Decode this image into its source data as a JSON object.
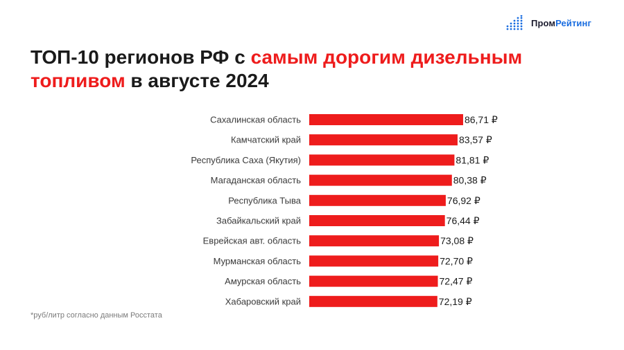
{
  "logo": {
    "part1": "Пром",
    "part2": "Рейтинг",
    "icon": "bar-dots-logo-icon"
  },
  "title": {
    "part1": "ТОП-10 регионов РФ с ",
    "highlight1": "самым дорогим дизельным топливом",
    "part2": " в августе 2024"
  },
  "colors": {
    "bar": "#ee1c1c",
    "highlight": "#ee1c1c",
    "logo_accent": "#1a6de0"
  },
  "chart_data": {
    "type": "bar",
    "orientation": "horizontal",
    "categories": [
      "Сахалинская область",
      "Камчатский край",
      "Республика Саха (Якутия)",
      "Магаданская область",
      "Республика Тыва",
      "Забайкальский край",
      "Еврейская авт. область",
      "Мурманская область",
      "Амурская область",
      "Хабаровский край"
    ],
    "values": [
      86.71,
      83.57,
      81.81,
      80.38,
      76.92,
      76.44,
      73.08,
      72.7,
      72.47,
      72.19
    ],
    "value_labels": [
      "86,71 ₽",
      "83,57 ₽",
      "81,81 ₽",
      "80,38 ₽",
      "76,92 ₽",
      "76,44 ₽",
      "73,08 ₽",
      "72,70 ₽",
      "72,47 ₽",
      "72,19 ₽"
    ],
    "grid": false,
    "legend": false
  },
  "footnote": "*руб/литр согласно данным Росстата"
}
